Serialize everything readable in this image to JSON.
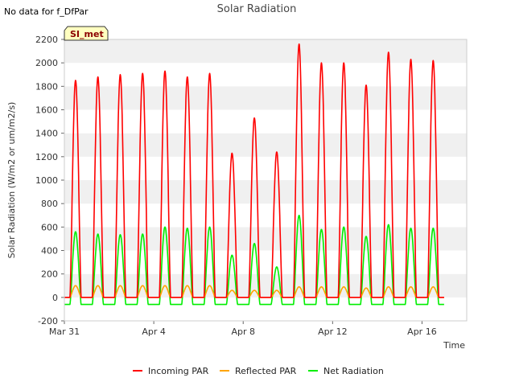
{
  "note": "No data for f_DfPar",
  "badge": "SI_met",
  "colors": {
    "incoming": "#ff0000",
    "reflected": "#ffa500",
    "net": "#00ee00",
    "band": "#f0f0f0",
    "badge_bg": "#ffffc0"
  },
  "chart_data": {
    "type": "line",
    "title": "Solar Radiation",
    "xlabel": "Time",
    "ylabel": "Solar Radiation (W/m2 or um/m2/s)",
    "xlim_days": [
      0,
      18
    ],
    "ylim": [
      -200,
      2200
    ],
    "yticks": [
      -200,
      0,
      200,
      400,
      600,
      800,
      1000,
      1200,
      1400,
      1600,
      1800,
      2000,
      2200
    ],
    "xticks": [
      {
        "day": 0,
        "label": "Mar 31"
      },
      {
        "day": 4,
        "label": "Apr 4"
      },
      {
        "day": 8,
        "label": "Apr 8"
      },
      {
        "day": 12,
        "label": "Apr 12"
      },
      {
        "day": 16,
        "label": "Apr 16"
      }
    ],
    "legend_position": "bottom",
    "series": [
      {
        "name": "Incoming PAR",
        "color": "#ff0000",
        "daily_peaks": [
          1850,
          1880,
          1900,
          1910,
          1930,
          1880,
          1910,
          1230,
          1530,
          1240,
          2160,
          2000,
          2000,
          1810,
          2090,
          2030,
          2020
        ]
      },
      {
        "name": "Reflected PAR",
        "color": "#ffa500",
        "daily_peaks": [
          100,
          100,
          100,
          100,
          100,
          100,
          100,
          60,
          60,
          60,
          90,
          90,
          90,
          80,
          90,
          90,
          90
        ]
      },
      {
        "name": "Net Radiation",
        "color": "#00ee00",
        "daily_peaks": [
          560,
          540,
          535,
          540,
          600,
          590,
          600,
          360,
          460,
          260,
          700,
          580,
          600,
          520,
          620,
          590,
          590
        ],
        "night_value": -60
      }
    ]
  }
}
